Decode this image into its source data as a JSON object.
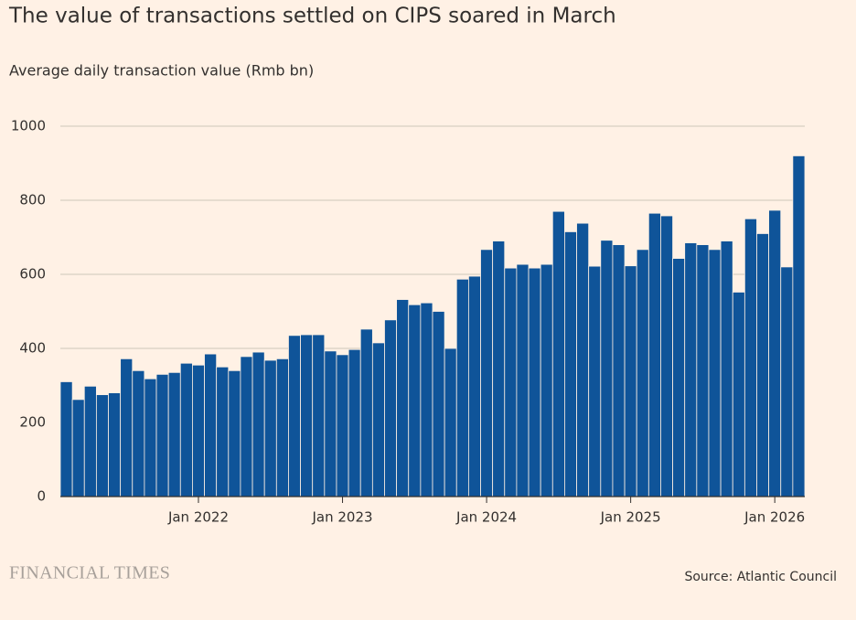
{
  "chart_data": {
    "type": "bar",
    "title": "The value of transactions settled on CIPS soared in March",
    "subtitle": "Average daily transaction value (Rmb bn)",
    "source": "Source: Atlantic Council",
    "brand": "FINANCIAL TIMES",
    "color": "#0f5499",
    "categories": [
      null,
      null,
      null,
      null,
      null,
      null,
      null,
      null,
      null,
      null,
      null,
      "Jan 2022",
      null,
      null,
      null,
      null,
      null,
      null,
      null,
      null,
      null,
      null,
      null,
      "Jan 2023",
      null,
      null,
      null,
      null,
      null,
      null,
      null,
      null,
      null,
      null,
      null,
      "Jan 2024",
      null,
      null,
      null,
      null,
      null,
      null,
      null,
      null,
      null,
      null,
      null,
      "Jan 2025",
      null,
      null,
      null,
      null,
      null,
      null,
      null,
      null,
      null,
      null,
      null,
      "Jan 2026",
      null,
      null
    ],
    "values": [
      310,
      262,
      298,
      275,
      280,
      372,
      340,
      318,
      330,
      335,
      360,
      355,
      385,
      350,
      340,
      378,
      390,
      368,
      372,
      435,
      437,
      437,
      393,
      383,
      397,
      452,
      415,
      477,
      532,
      518,
      523,
      500,
      400,
      587,
      595,
      667,
      690,
      617,
      627,
      617,
      627,
      770,
      715,
      738,
      622,
      692,
      680,
      623,
      667,
      765,
      758,
      643,
      685,
      680,
      667,
      690,
      552,
      750,
      710,
      773,
      620,
      920
    ],
    "ylim": [
      0,
      1000
    ],
    "yticks": [
      0,
      200,
      400,
      600,
      800,
      1000
    ],
    "grid": true
  }
}
